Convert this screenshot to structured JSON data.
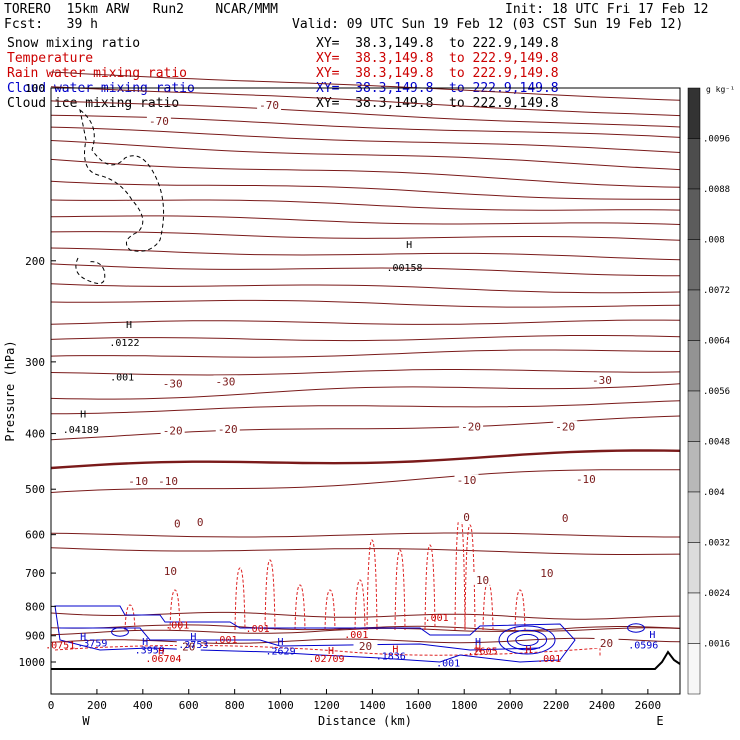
{
  "header": {
    "model_line": "TORERO  15km ARW   Run2    NCAR/MMM",
    "init": "Init: 18 UTC Fri 17 Feb 12",
    "fcst": "Fcst:   39 h",
    "valid": "Valid: 09 UTC Sun 19 Feb 12 (03 CST Sun 19 Feb 12)"
  },
  "fields": [
    {
      "name": "Snow mixing ratio",
      "xy": "XY=  38.3,149.8  to 222.9,149.8",
      "color": "#000000"
    },
    {
      "name": "Temperature",
      "xy": "XY=  38.3,149.8  to 222.9,149.8",
      "color": "#cc0000"
    },
    {
      "name": "Rain water mixing ratio",
      "xy": "XY=  38.3,149.8  to 222.9,149.8",
      "color": "#cc0000"
    },
    {
      "name": "Cloud water mixing ratio",
      "xy": "XY=  38.3,149.8  to 222.9,149.8",
      "color": "#0000cc"
    },
    {
      "name": "Cloud ice mixing ratio",
      "xy": "XY=  38.3,149.8  to 222.9,149.8",
      "color": "#000000"
    }
  ],
  "chart_data": {
    "type": "contour-cross-section",
    "ylabel": "Pressure (hPa)",
    "xlabel": "Distance (km)",
    "x_ticks": [
      0,
      200,
      400,
      600,
      800,
      1000,
      1200,
      1400,
      1600,
      1800,
      2000,
      2200,
      2400,
      2600
    ],
    "x_range": [
      0,
      2740
    ],
    "y_ticks": [
      100,
      200,
      300,
      400,
      500,
      600,
      700,
      800,
      900,
      1000
    ],
    "y_range": [
      100,
      1050
    ],
    "y_scale": "log-pressure",
    "x_end_labels": {
      "left": "W",
      "right": "E"
    },
    "colorbar": {
      "unit": "g kg⁻¹",
      "labels": [
        ".0096",
        ".0088",
        ".008",
        ".0072",
        ".0064",
        ".0056",
        ".0048",
        ".004",
        ".0032",
        ".0024",
        ".0016"
      ],
      "shades": [
        "#333333",
        "#4d4d4d",
        "#5c5c5c",
        "#6e6e6e",
        "#808080",
        "#939393",
        "#a6a6a6",
        "#b8b8b8",
        "#cacaca",
        "#dcdcdc",
        "#ececec",
        "#f7f7f7"
      ]
    },
    "temperature_contour_labels": [
      {
        "text": "-70",
        "x": 470,
        "p": 115
      },
      {
        "text": "-70",
        "x": 950,
        "p": 108
      },
      {
        "text": "-30",
        "x": 530,
        "p": 330
      },
      {
        "text": "-30",
        "x": 760,
        "p": 327
      },
      {
        "text": "-30",
        "x": 2400,
        "p": 325
      },
      {
        "text": "-20",
        "x": 530,
        "p": 398
      },
      {
        "text": "-20",
        "x": 770,
        "p": 396
      },
      {
        "text": "-20",
        "x": 1830,
        "p": 392
      },
      {
        "text": "-20",
        "x": 2240,
        "p": 392
      },
      {
        "text": "-10",
        "x": 380,
        "p": 488
      },
      {
        "text": "-10",
        "x": 510,
        "p": 488
      },
      {
        "text": "-10",
        "x": 1810,
        "p": 486
      },
      {
        "text": "-10",
        "x": 2330,
        "p": 484
      },
      {
        "text": "0",
        "x": 550,
        "p": 578
      },
      {
        "text": "0",
        "x": 650,
        "p": 575
      },
      {
        "text": "0",
        "x": 1810,
        "p": 564
      },
      {
        "text": "0",
        "x": 2240,
        "p": 566
      },
      {
        "text": "10",
        "x": 520,
        "p": 700
      },
      {
        "text": "10",
        "x": 1880,
        "p": 725
      },
      {
        "text": "10",
        "x": 2160,
        "p": 705
      },
      {
        "text": "20",
        "x": 600,
        "p": 948
      },
      {
        "text": "20",
        "x": 1370,
        "p": 946
      },
      {
        "text": "20",
        "x": 2420,
        "p": 935
      }
    ],
    "mixing_ratio_labels": [
      {
        "text": ".00158",
        "x": 1540,
        "p": 205,
        "color": "#000000"
      },
      {
        "text": ".0122",
        "x": 320,
        "p": 277,
        "color": "#000000"
      },
      {
        "text": ".001",
        "x": 310,
        "p": 318,
        "color": "#000000"
      },
      {
        "text": ".04189",
        "x": 130,
        "p": 393,
        "color": "#000000"
      },
      {
        "text": ".001",
        "x": 1680,
        "p": 835,
        "color": "#cc0000"
      },
      {
        "text": ".001",
        "x": 550,
        "p": 860,
        "color": "#cc0000"
      },
      {
        "text": ".001",
        "x": 900,
        "p": 872,
        "color": "#cc0000"
      },
      {
        "text": ".001",
        "x": 1330,
        "p": 893,
        "color": "#cc0000"
      },
      {
        "text": ".001",
        "x": 760,
        "p": 912,
        "color": "#cc0000"
      },
      {
        "text": ".3759",
        "x": 180,
        "p": 925,
        "color": "#0000cc"
      },
      {
        "text": ".3753",
        "x": 620,
        "p": 930,
        "color": "#0000cc"
      },
      {
        "text": ".0751",
        "x": 40,
        "p": 932,
        "color": "#cc0000"
      },
      {
        "text": ".3959",
        "x": 430,
        "p": 952,
        "color": "#0000cc"
      },
      {
        "text": ".2629",
        "x": 1000,
        "p": 955,
        "color": "#0000cc"
      },
      {
        "text": ".1836",
        "x": 1480,
        "p": 975,
        "color": "#0000cc"
      },
      {
        "text": ".2605",
        "x": 1880,
        "p": 954,
        "color": "#cc0000"
      },
      {
        "text": ".06704",
        "x": 490,
        "p": 985,
        "color": "#cc0000"
      },
      {
        "text": ".02709",
        "x": 1200,
        "p": 985,
        "color": "#cc0000"
      },
      {
        "text": ".001",
        "x": 1730,
        "p": 1002,
        "color": "#0000cc"
      },
      {
        "text": ".001",
        "x": 2170,
        "p": 985,
        "color": "#cc0000"
      },
      {
        "text": ".0596",
        "x": 2580,
        "p": 932,
        "color": "#0000cc"
      }
    ],
    "high_markers": [
      {
        "x": 1560,
        "p": 190,
        "color": "#000000"
      },
      {
        "x": 340,
        "p": 262,
        "color": "#000000"
      },
      {
        "x": 140,
        "p": 375,
        "color": "#000000"
      },
      {
        "x": 140,
        "p": 915,
        "color": "#0000cc"
      },
      {
        "x": 620,
        "p": 915,
        "color": "#0000cc"
      },
      {
        "x": 1000,
        "p": 935,
        "color": "#0000cc"
      },
      {
        "x": 410,
        "p": 935,
        "color": "#0000cc"
      },
      {
        "x": 1860,
        "p": 935,
        "color": "#0000cc"
      },
      {
        "x": 2620,
        "p": 908,
        "color": "#0000cc"
      },
      {
        "x": 1220,
        "p": 968,
        "color": "#cc0000"
      },
      {
        "x": 480,
        "p": 970,
        "color": "#cc0000"
      },
      {
        "x": 1860,
        "p": 960,
        "color": "#cc0000"
      },
      {
        "x": 1500,
        "p": 962,
        "color": "#cc0000"
      },
      {
        "x": 2080,
        "p": 965,
        "color": "#cc0000"
      }
    ]
  }
}
